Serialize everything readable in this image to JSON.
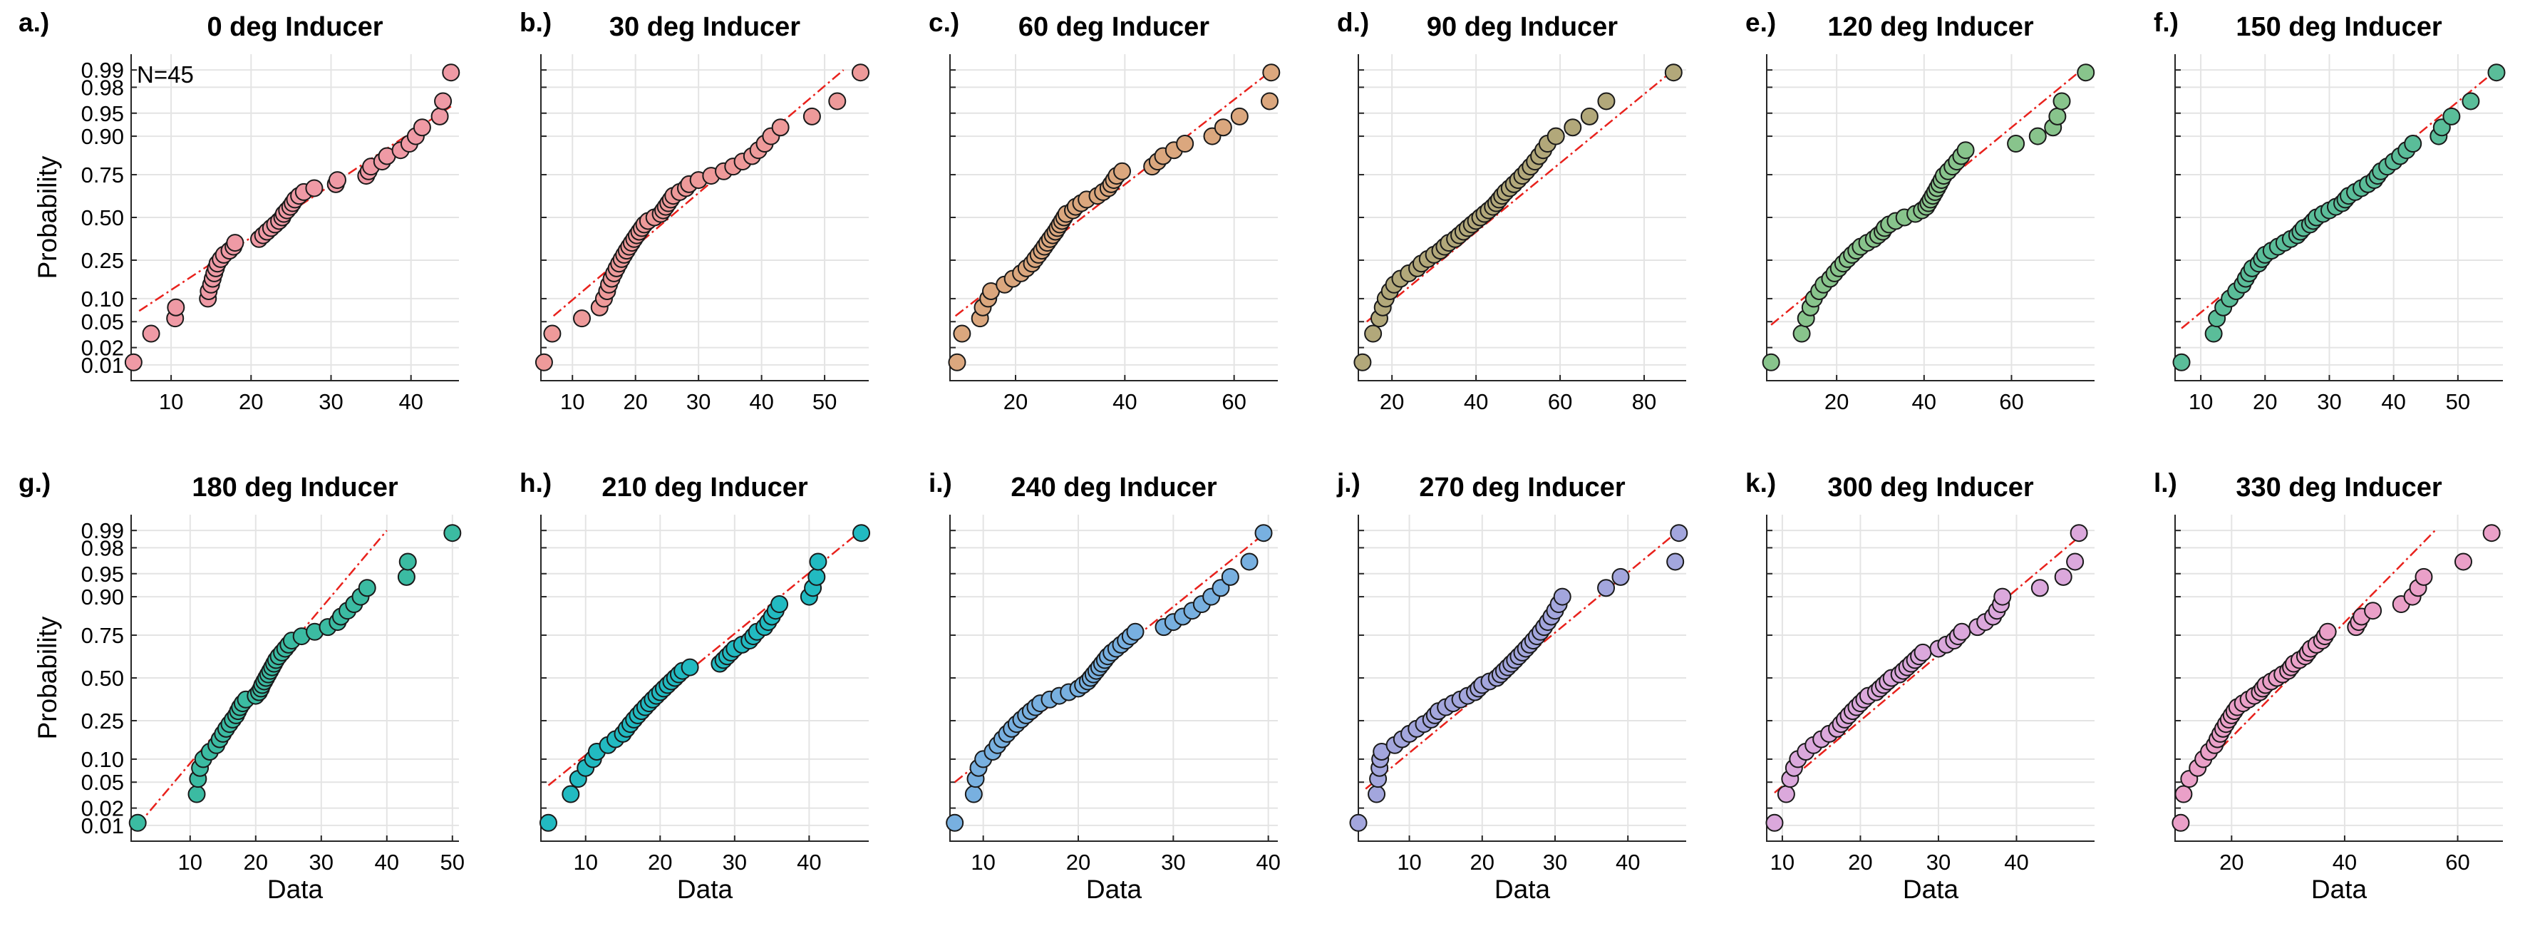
{
  "figure": {
    "ylabel": "Probability",
    "xlabel": "Data",
    "prob_ticks": [
      "0.01",
      "0.02",
      "0.05",
      "0.10",
      "0.25",
      "0.50",
      "0.75",
      "0.90",
      "0.95",
      "0.98",
      "0.99"
    ],
    "note": "N=45"
  },
  "chart_data": [
    {
      "type": "scatter",
      "scale": "normal-probability",
      "letter": "a.)",
      "title": "0 deg Inducer",
      "xlim": [
        5,
        46
      ],
      "xticks": [
        10,
        20,
        30,
        40
      ],
      "color": "#ef9aa5",
      "fit_line": {
        "x0": 6,
        "x1": 45,
        "p0": 0.07,
        "p1": 0.96
      },
      "x": [
        5.3,
        7.5,
        10.5,
        10.6,
        14.6,
        14.7,
        15.0,
        15.2,
        15.4,
        15.6,
        15.8,
        16.2,
        16.6,
        17.3,
        17.8,
        18.0,
        21.0,
        21.5,
        22.0,
        22.5,
        23.0,
        23.5,
        23.9,
        24.1,
        24.5,
        24.9,
        25.2,
        25.5,
        26.0,
        26.6,
        27.9,
        30.6,
        30.8,
        34.4,
        34.7,
        35.0,
        36.4,
        37.0,
        38.7,
        39.8,
        40.6,
        41.4,
        43.6,
        44.0,
        45.0
      ]
    },
    {
      "type": "scatter",
      "scale": "normal-probability",
      "letter": "b.)",
      "title": "30 deg Inducer",
      "xlim": [
        5,
        57
      ],
      "xticks": [
        10,
        20,
        30,
        40,
        50
      ],
      "color": "#ee9a9a",
      "fit_line": {
        "x0": 7,
        "x1": 53,
        "p0": 0.06,
        "p1": 0.99
      },
      "x": [
        5.5,
        6.8,
        11.5,
        14.3,
        15.0,
        15.5,
        15.8,
        16.2,
        16.6,
        17.0,
        17.4,
        17.8,
        18.2,
        18.6,
        19.0,
        19.4,
        19.8,
        20.2,
        20.6,
        21.0,
        21.4,
        22.0,
        23.0,
        24.0,
        24.4,
        24.8,
        25.2,
        25.6,
        26.0,
        27.0,
        28.0,
        28.5,
        30.0,
        32.0,
        34.0,
        35.5,
        37.0,
        38.5,
        39.5,
        40.5,
        41.5,
        43.0,
        48.0,
        52.0,
        55.7
      ]
    },
    {
      "type": "scatter",
      "scale": "normal-probability",
      "letter": "c.)",
      "title": "60 deg Inducer",
      "xlim": [
        8,
        68
      ],
      "xticks": [
        20,
        40,
        60
      ],
      "color": "#dba77e",
      "fit_line": {
        "x0": 9,
        "x1": 67,
        "p0": 0.06,
        "p1": 0.99
      },
      "x": [
        9.3,
        10.2,
        13.5,
        14.0,
        15.0,
        15.5,
        18.0,
        19.5,
        21.0,
        22.0,
        23.0,
        23.6,
        24.2,
        24.8,
        25.3,
        25.8,
        26.3,
        26.8,
        27.3,
        27.7,
        28.1,
        28.5,
        28.9,
        29.3,
        30.5,
        31.0,
        32.0,
        33.0,
        35.0,
        36.0,
        37.0,
        37.5,
        38.0,
        38.5,
        39.5,
        45.0,
        46.0,
        47.0,
        49.0,
        51.0,
        56.0,
        58.0,
        61.0,
        66.5,
        66.8
      ]
    },
    {
      "type": "scatter",
      "scale": "normal-probability",
      "letter": "d.)",
      "title": "90 deg Inducer",
      "xlim": [
        12,
        90
      ],
      "xticks": [
        20,
        40,
        60,
        80
      ],
      "color": "#b2a87a",
      "fit_line": {
        "x0": 14,
        "x1": 87,
        "p0": 0.05,
        "p1": 0.99
      },
      "x": [
        13.0,
        15.5,
        17.0,
        17.8,
        18.5,
        19.5,
        20.5,
        22.0,
        24.0,
        26.0,
        27.0,
        28.5,
        30.0,
        31.5,
        32.5,
        33.5,
        35.0,
        36.0,
        37.0,
        38.0,
        39.0,
        40.0,
        41.0,
        42.0,
        43.0,
        44.0,
        44.8,
        45.5,
        46.2,
        47.0,
        48.0,
        49.0,
        50.0,
        51.0,
        52.0,
        53.0,
        54.0,
        55.0,
        56.0,
        57.0,
        59.0,
        63.0,
        67.0,
        71.0,
        87.0
      ]
    },
    {
      "type": "scatter",
      "scale": "normal-probability",
      "letter": "e.)",
      "title": "120 deg Inducer",
      "xlim": [
        4,
        79
      ],
      "xticks": [
        20,
        40,
        60
      ],
      "color": "#88c48c",
      "fit_line": {
        "x0": 5,
        "x1": 76,
        "p0": 0.045,
        "p1": 0.99
      },
      "x": [
        5.0,
        12.0,
        13.0,
        14.0,
        14.8,
        16.0,
        17.0,
        18.5,
        19.5,
        20.5,
        21.5,
        22.5,
        23.5,
        24.5,
        25.5,
        27.0,
        28.5,
        29.5,
        30.5,
        31.0,
        32.0,
        33.5,
        35.5,
        38.0,
        39.5,
        40.5,
        41.0,
        41.5,
        42.0,
        42.5,
        43.0,
        43.5,
        44.0,
        44.5,
        45.5,
        46.5,
        47.5,
        48.5,
        49.5,
        61.0,
        66.0,
        69.5,
        70.5,
        71.5,
        77.0
      ]
    },
    {
      "type": "scatter",
      "scale": "normal-probability",
      "letter": "f.)",
      "title": "150 deg Inducer",
      "xlim": [
        6,
        57
      ],
      "xticks": [
        10,
        20,
        30,
        40,
        50
      ],
      "color": "#5abd99",
      "fit_line": {
        "x0": 7,
        "x1": 56,
        "p0": 0.04,
        "p1": 0.99
      },
      "x": [
        7.0,
        12.0,
        12.5,
        13.5,
        14.5,
        15.5,
        16.5,
        17.0,
        17.5,
        18.0,
        19.0,
        19.5,
        20.0,
        21.0,
        22.0,
        23.0,
        24.0,
        25.0,
        25.5,
        26.0,
        27.0,
        27.5,
        28.0,
        29.0,
        30.0,
        31.0,
        32.0,
        32.5,
        33.0,
        34.0,
        35.0,
        36.0,
        37.0,
        37.5,
        38.0,
        39.0,
        40.0,
        41.0,
        42.0,
        43.0,
        47.0,
        47.5,
        49.0,
        52.0,
        56.0
      ]
    },
    {
      "type": "scatter",
      "scale": "normal-probability",
      "letter": "g.)",
      "title": "180 deg Inducer",
      "xlim": [
        1,
        51
      ],
      "xticks": [
        10,
        20,
        30,
        40,
        50
      ],
      "color": "#3bbba2",
      "fit_line": {
        "x0": 2,
        "x1": 40,
        "p0": 0.01,
        "p1": 0.99
      },
      "x": [
        2.0,
        11.0,
        11.2,
        11.5,
        12.0,
        13.0,
        14.0,
        14.5,
        15.0,
        15.5,
        16.0,
        16.5,
        17.0,
        17.3,
        17.6,
        18.0,
        18.5,
        20.0,
        20.5,
        20.8,
        21.0,
        21.3,
        21.6,
        21.9,
        22.2,
        22.5,
        22.8,
        23.1,
        23.5,
        24.0,
        24.5,
        25.0,
        25.5,
        27.0,
        29.0,
        31.0,
        32.5,
        33.0,
        34.0,
        35.0,
        36.0,
        37.0,
        43.0,
        43.2,
        50.0
      ]
    },
    {
      "type": "scatter",
      "scale": "normal-probability",
      "letter": "h.)",
      "title": "210 deg Inducer",
      "xlim": [
        4,
        48
      ],
      "xticks": [
        10,
        20,
        30,
        40
      ],
      "color": "#22bac1",
      "fit_line": {
        "x0": 5,
        "x1": 47,
        "p0": 0.045,
        "p1": 0.99
      },
      "x": [
        5.0,
        8.0,
        9.0,
        10.0,
        11.0,
        11.5,
        13.0,
        14.0,
        15.0,
        15.5,
        16.0,
        16.5,
        17.0,
        17.5,
        18.0,
        18.5,
        19.0,
        19.5,
        20.0,
        20.5,
        21.0,
        21.5,
        22.0,
        22.5,
        23.0,
        24.0,
        28.0,
        28.5,
        29.0,
        29.5,
        30.0,
        31.0,
        32.0,
        32.5,
        33.0,
        34.0,
        34.5,
        35.0,
        35.5,
        36.0,
        40.0,
        40.5,
        41.0,
        41.2,
        47.0
      ]
    },
    {
      "type": "scatter",
      "scale": "normal-probability",
      "letter": "i.)",
      "title": "240 deg Inducer",
      "xlim": [
        6.5,
        41
      ],
      "xticks": [
        10,
        20,
        30,
        40
      ],
      "color": "#78b0e0",
      "fit_line": {
        "x0": 7,
        "x1": 40,
        "p0": 0.05,
        "p1": 0.99
      },
      "x": [
        7.0,
        9.0,
        9.2,
        9.5,
        10.0,
        11.0,
        11.5,
        12.0,
        12.5,
        13.0,
        13.5,
        14.0,
        14.5,
        15.0,
        15.5,
        16.0,
        17.0,
        18.0,
        19.0,
        20.0,
        20.5,
        21.0,
        21.3,
        21.6,
        21.9,
        22.2,
        22.5,
        22.8,
        23.1,
        23.5,
        24.0,
        24.5,
        25.0,
        25.5,
        26.0,
        29.0,
        30.0,
        31.0,
        32.0,
        33.0,
        34.0,
        35.0,
        36.0,
        38.0,
        39.5
      ]
    },
    {
      "type": "scatter",
      "scale": "normal-probability",
      "letter": "j.)",
      "title": "270 deg Inducer",
      "xlim": [
        3,
        48
      ],
      "xticks": [
        10,
        20,
        30,
        40
      ],
      "color": "#a3a6dd",
      "fit_line": {
        "x0": 4,
        "x1": 47,
        "p0": 0.04,
        "p1": 0.99
      },
      "x": [
        3.0,
        5.5,
        5.7,
        5.9,
        6.0,
        6.2,
        8.0,
        9.0,
        10.0,
        11.0,
        12.0,
        13.0,
        13.5,
        14.0,
        15.0,
        16.0,
        17.0,
        18.0,
        19.0,
        19.5,
        20.0,
        21.0,
        22.0,
        22.5,
        23.0,
        23.5,
        24.0,
        24.5,
        25.0,
        25.5,
        26.0,
        26.5,
        27.0,
        27.5,
        28.0,
        28.5,
        29.0,
        29.5,
        30.0,
        30.5,
        31.0,
        37.0,
        39.0,
        46.5,
        47.0
      ]
    },
    {
      "type": "scatter",
      "scale": "normal-probability",
      "letter": "k.)",
      "title": "300 deg Inducer",
      "xlim": [
        8,
        50
      ],
      "xticks": [
        10,
        20,
        30,
        40
      ],
      "color": "#dba8dc",
      "fit_line": {
        "x0": 9,
        "x1": 49,
        "p0": 0.035,
        "p1": 0.99
      },
      "x": [
        9.0,
        10.5,
        11.0,
        11.5,
        12.0,
        13.0,
        14.0,
        15.0,
        16.0,
        17.0,
        17.5,
        18.0,
        18.5,
        19.0,
        19.5,
        20.0,
        20.5,
        21.0,
        22.0,
        22.5,
        23.0,
        23.5,
        24.0,
        25.0,
        25.5,
        26.0,
        26.5,
        27.0,
        27.5,
        28.0,
        30.0,
        31.0,
        32.0,
        32.5,
        33.0,
        35.0,
        36.0,
        37.0,
        37.5,
        38.0,
        38.2,
        43.0,
        46.0,
        47.5,
        48.0
      ]
    },
    {
      "type": "scatter",
      "scale": "normal-probability",
      "letter": "l.)",
      "title": "330 deg Inducer",
      "xlim": [
        10,
        68
      ],
      "xticks": [
        20,
        40,
        60
      ],
      "color": "#eaa0c8",
      "fit_line": {
        "x0": 11,
        "x1": 56,
        "p0": 0.04,
        "p1": 0.99
      },
      "x": [
        11.0,
        11.5,
        12.5,
        14.0,
        15.0,
        16.0,
        17.0,
        17.5,
        18.0,
        18.5,
        19.0,
        19.5,
        20.0,
        20.5,
        21.0,
        22.0,
        23.0,
        24.0,
        25.0,
        25.5,
        26.0,
        27.0,
        28.0,
        29.0,
        30.0,
        30.5,
        31.0,
        32.0,
        33.0,
        33.5,
        34.0,
        35.0,
        36.0,
        36.5,
        37.0,
        42.0,
        42.5,
        43.0,
        45.0,
        50.0,
        52.0,
        53.0,
        54.0,
        61.0,
        66.0
      ]
    }
  ]
}
